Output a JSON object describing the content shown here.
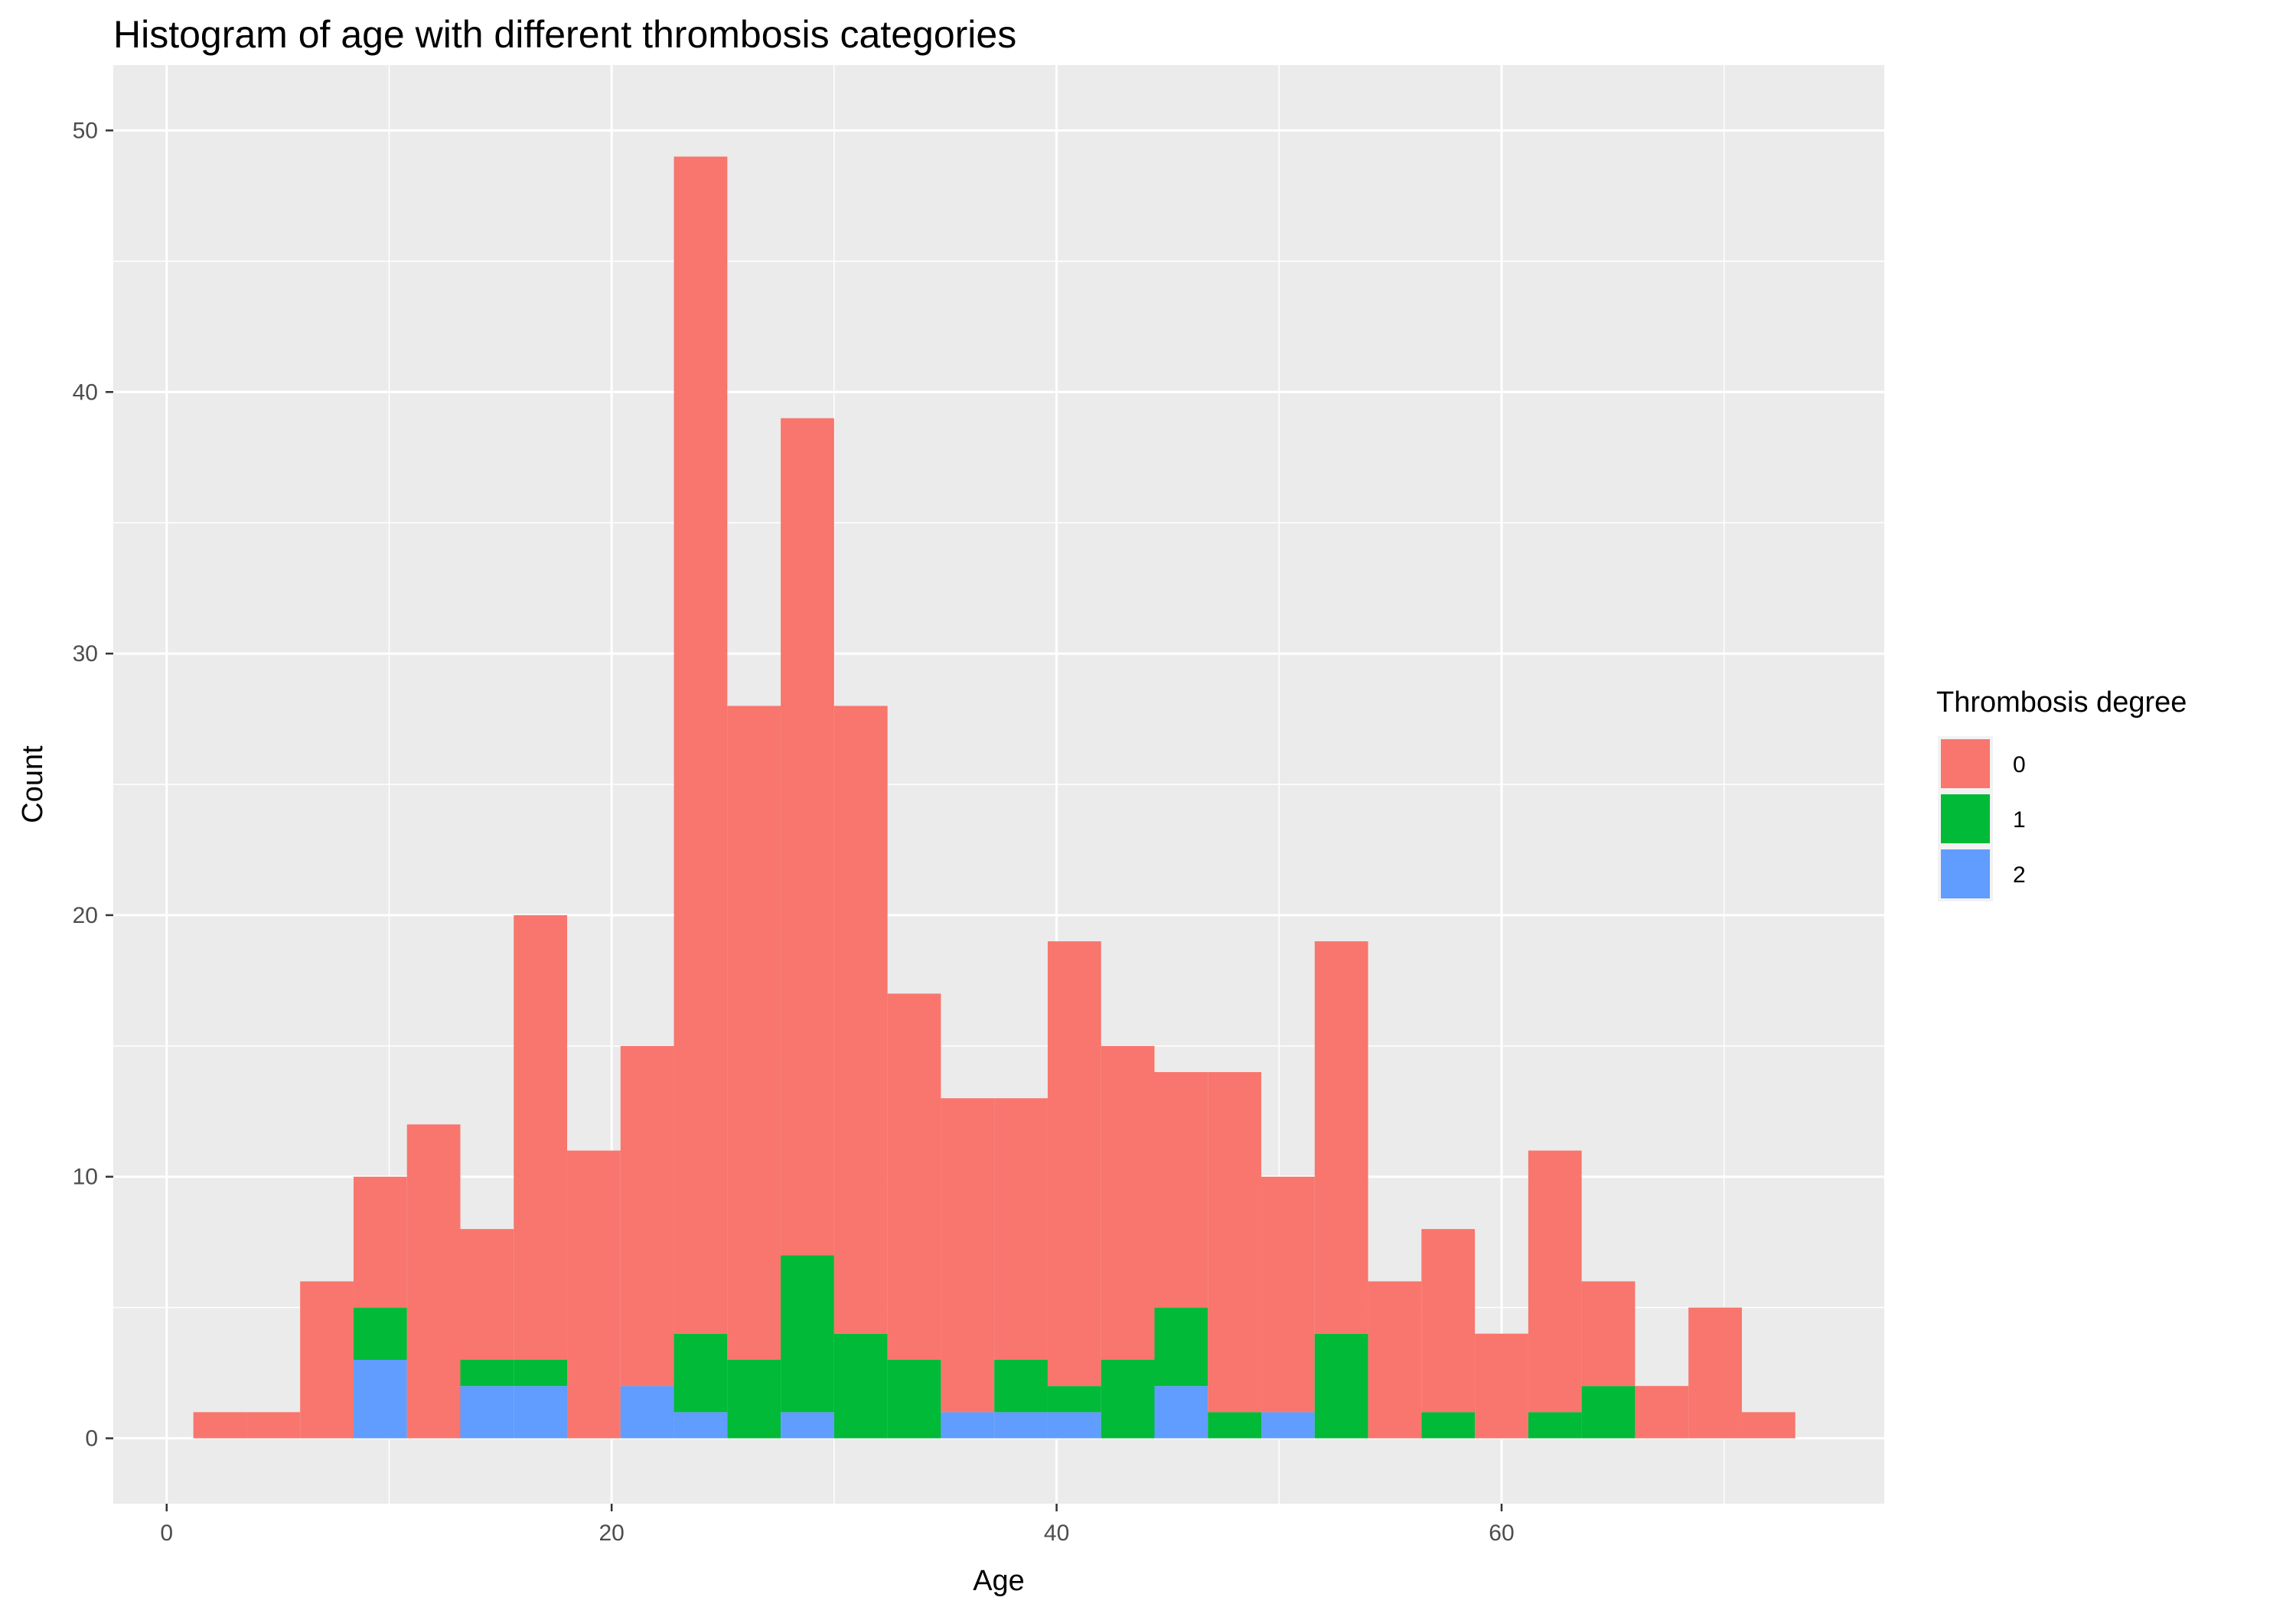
{
  "chart_data": {
    "type": "bar",
    "stacked": true,
    "title": "Histogram of age with different thrombosis categories",
    "xlabel": "Age",
    "ylabel": "Count",
    "bin_width": 2.4,
    "bin_start": 1.2,
    "xlim": [
      -2.4,
      77.2
    ],
    "ylim": [
      -2.5,
      52.5
    ],
    "x_ticks": [
      0,
      20,
      40,
      60
    ],
    "y_ticks": [
      0,
      10,
      20,
      30,
      40,
      50
    ],
    "grid": true,
    "legend": {
      "title": "Thrombosis degree",
      "position": "right"
    },
    "series": [
      {
        "name": "0",
        "color": "#F8766D",
        "values": [
          1,
          1,
          6,
          5,
          12,
          5,
          17,
          11,
          13,
          45,
          25,
          32,
          24,
          14,
          12,
          10,
          17,
          12,
          9,
          13,
          9,
          15,
          6,
          7,
          4,
          10,
          4,
          2,
          5,
          1
        ]
      },
      {
        "name": "1",
        "color": "#00BA38",
        "values": [
          0,
          0,
          0,
          2,
          0,
          1,
          1,
          0,
          0,
          3,
          3,
          6,
          4,
          3,
          0,
          2,
          1,
          3,
          3,
          1,
          0,
          4,
          0,
          1,
          0,
          1,
          2,
          0,
          0,
          0
        ]
      },
      {
        "name": "2",
        "color": "#619CFF",
        "values": [
          0,
          0,
          0,
          3,
          0,
          2,
          2,
          0,
          2,
          1,
          0,
          1,
          0,
          0,
          1,
          1,
          1,
          0,
          2,
          0,
          1,
          0,
          0,
          0,
          0,
          0,
          0,
          0,
          0,
          0
        ]
      }
    ]
  }
}
